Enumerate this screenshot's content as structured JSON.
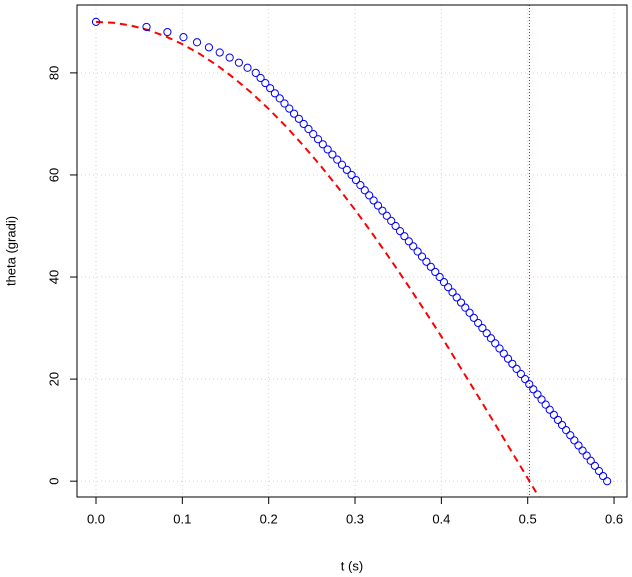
{
  "chart_data": {
    "type": "scatter",
    "xlabel": "t (s)",
    "ylabel": "theta (gradi)",
    "xlim": [
      -0.022,
      0.615
    ],
    "ylim": [
      -3.1,
      93.3
    ],
    "xticks": [
      {
        "value": 0,
        "label": "0.0"
      },
      0.1,
      0.2,
      0.3,
      0.4,
      0.5,
      0.6
    ],
    "yticks": [
      0,
      20,
      40,
      60,
      80
    ],
    "grid": true,
    "points": {
      "color": "#0000ff",
      "x": [
        0,
        0.0585,
        0.0827,
        0.1013,
        0.117,
        0.1308,
        0.1433,
        0.1548,
        0.1655,
        0.1755,
        0.185,
        0.1906,
        0.1961,
        0.2017,
        0.2072,
        0.2128,
        0.2183,
        0.2239,
        0.2294,
        0.235,
        0.2405,
        0.2461,
        0.2516,
        0.2572,
        0.2627,
        0.2683,
        0.2738,
        0.2794,
        0.2849,
        0.2905,
        0.296,
        0.3011,
        0.3062,
        0.3113,
        0.3164,
        0.3215,
        0.3266,
        0.3317,
        0.3368,
        0.3419,
        0.347,
        0.3521,
        0.3572,
        0.3623,
        0.3674,
        0.3725,
        0.3776,
        0.3827,
        0.3878,
        0.3929,
        0.398,
        0.403,
        0.4079,
        0.4129,
        0.4178,
        0.4228,
        0.4277,
        0.4327,
        0.4376,
        0.4426,
        0.4475,
        0.4525,
        0.4574,
        0.4624,
        0.4673,
        0.4723,
        0.4772,
        0.4822,
        0.4871,
        0.4921,
        0.497,
        0.5018,
        0.5065,
        0.5113,
        0.516,
        0.5208,
        0.5255,
        0.5303,
        0.535,
        0.5398,
        0.5445,
        0.5493,
        0.554,
        0.5588,
        0.5635,
        0.5683,
        0.573,
        0.5778,
        0.5825,
        0.5873,
        0.592
      ],
      "values": [
        90,
        89,
        88,
        87,
        86,
        85,
        84,
        83,
        82,
        81,
        80,
        79,
        78,
        77,
        76,
        75,
        74,
        73,
        72,
        71,
        70,
        69,
        68,
        67,
        66,
        65,
        64,
        63,
        62,
        61,
        60,
        59,
        58,
        57,
        56,
        55,
        54,
        53,
        52,
        51,
        50,
        49,
        48,
        47,
        46,
        45,
        44,
        43,
        42,
        41,
        40,
        39,
        38,
        37,
        36,
        35,
        34,
        33,
        32,
        31,
        30,
        29,
        28,
        27,
        26,
        25,
        24,
        23,
        22,
        21,
        20,
        19,
        18,
        17,
        16,
        15,
        14,
        13,
        12,
        11,
        10,
        9,
        8,
        7,
        6,
        5,
        4,
        3,
        2,
        1,
        0
      ]
    },
    "line": {
      "color": "#ff0000",
      "x": [
        0,
        0.02,
        0.04,
        0.06,
        0.08,
        0.1,
        0.12,
        0.14,
        0.16,
        0.18,
        0.2,
        0.22,
        0.24,
        0.26,
        0.28,
        0.3,
        0.32,
        0.34,
        0.36,
        0.38,
        0.4,
        0.42,
        0.44,
        0.46,
        0.48,
        0.5,
        0.51,
        0.515
      ],
      "values": [
        90,
        89.82,
        89.3,
        88.42,
        87.2,
        85.63,
        83.73,
        81.5,
        78.95,
        76.1,
        72.94,
        69.51,
        65.79,
        61.82,
        57.61,
        53.17,
        48.53,
        43.7,
        38.72,
        33.59,
        28.36,
        22.84,
        17.35,
        11.79,
        6.19,
        0.56,
        -2.26,
        -3.66
      ]
    },
    "vline": {
      "value": 0.502,
      "color": "#ff0000"
    }
  }
}
